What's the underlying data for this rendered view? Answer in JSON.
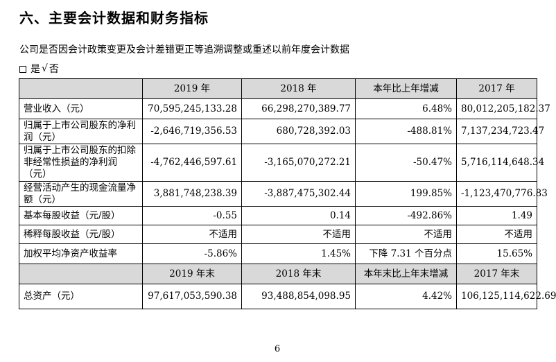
{
  "heading": "六、主要会计数据和财务指标",
  "subline": "公司是否因会计政策变更及会计差错更正等追溯调整或重述以前年度会计数据",
  "choice": {
    "yes": "是",
    "check": "√",
    "no": "否"
  },
  "table": {
    "header1": [
      "",
      "2019 年",
      "2018 年",
      "本年比上年增减",
      "2017 年"
    ],
    "rows1": [
      [
        "营业收入（元）",
        "70,595,245,133.28",
        "66,298,270,389.77",
        "6.48%",
        "80,012,205,182.37"
      ],
      [
        "归属于上市公司股东的净利润（元）",
        "-2,646,719,356.53",
        "680,728,392.03",
        "-488.81%",
        "7,137,234,723.47"
      ],
      [
        "归属于上市公司股东的扣除非经常性损益的净利润（元）",
        "-4,762,446,597.61",
        "-3,165,070,272.21",
        "-50.47%",
        "5,716,114,648.34"
      ],
      [
        "经营活动产生的现金流量净额（元）",
        "3,881,748,238.39",
        "-3,887,475,302.44",
        "199.85%",
        "-1,123,470,776.83"
      ],
      [
        "基本每股收益（元/股）",
        "-0.55",
        "0.14",
        "-492.86%",
        "1.49"
      ],
      [
        "稀释每股收益（元/股）",
        "不适用",
        "不适用",
        "不适用",
        "不适用"
      ],
      [
        "加权平均净资产收益率",
        "-5.86%",
        "1.45%",
        "下降 7.31 个百分点",
        "15.65%"
      ]
    ],
    "header2": [
      "",
      "2019 年末",
      "2018 年末",
      "本年末比上年末增减",
      "2017 年末"
    ],
    "rows2": [
      [
        "总资产（元）",
        "97,617,053,590.38",
        "93,488,854,098.95",
        "4.42%",
        "106,125,114,622.69"
      ]
    ]
  },
  "page_number": "6"
}
